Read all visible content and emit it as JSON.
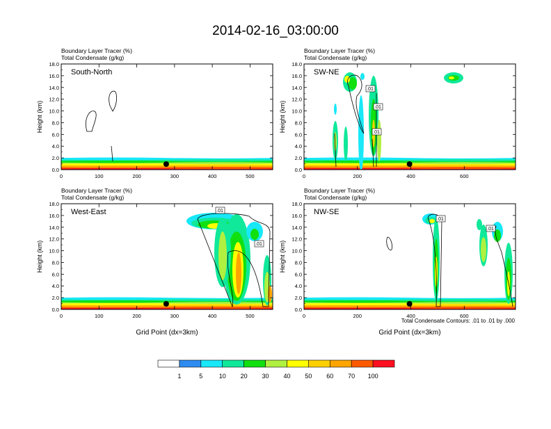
{
  "title": "2014-02-16_03:00:00",
  "colorbar": {
    "colors": [
      "#ffffff",
      "#2e8cf0",
      "#18e8f8",
      "#10e89a",
      "#10e010",
      "#b0f040",
      "#ffff00",
      "#ffd000",
      "#ffa500",
      "#ff5a00",
      "#ff1020"
    ],
    "labels": [
      "1",
      "5",
      "10",
      "20",
      "30",
      "40",
      "50",
      "60",
      "70",
      "100"
    ]
  },
  "footnote": "Total Condensate Contours: .01 to .01 by .000",
  "chart_data": [
    {
      "type": "heatmap",
      "panel": "South-North",
      "title_lines": [
        "Boundary Layer Tracer   (%)",
        "Total Condensate   (g/kg)"
      ],
      "ylabel": "Height (km)",
      "xlabel": "",
      "xlim": [
        0,
        560
      ],
      "ylim": [
        0,
        18
      ],
      "xticks": [
        "0",
        "100",
        "200",
        "300",
        "400",
        "500"
      ],
      "yticks": [
        "0.0",
        "2.0",
        "4.0",
        "6.0",
        "8.0",
        "10.0",
        "12.0",
        "14.0",
        "16.0",
        "18.0"
      ],
      "marker_x": 278,
      "contour_labels": []
    },
    {
      "type": "heatmap",
      "panel": "SW-NE",
      "title_lines": [
        "Boundary Layer Tracer   (%)",
        "Total Condensate   (g/kg)"
      ],
      "ylabel": "Height (km)",
      "xlabel": "",
      "xlim": [
        0,
        792
      ],
      "ylim": [
        0,
        18
      ],
      "xticks": [
        "0",
        "200",
        "400",
        "600"
      ],
      "yticks": [
        "0.0",
        "2.0",
        "4.0",
        "6.0",
        "8.0",
        "10.0",
        "12.0",
        "14.0",
        "16.0",
        "18.0"
      ],
      "marker_x": 395,
      "contour_labels": [
        ".01",
        ".01",
        ".01"
      ]
    },
    {
      "type": "heatmap",
      "panel": "West-East",
      "title_lines": [
        "Boundary Layer Tracer   (%)",
        "Total Condensate   (g/kg)"
      ],
      "ylabel": "Height (km)",
      "xlabel": "Grid Point (dx=3km)",
      "xlim": [
        0,
        560
      ],
      "ylim": [
        0,
        18
      ],
      "xticks": [
        "0",
        "100",
        "200",
        "300",
        "400",
        "500"
      ],
      "yticks": [
        "0.0",
        "2.0",
        "4.0",
        "6.0",
        "8.0",
        "10.0",
        "12.0",
        "14.0",
        "16.0",
        "18.0"
      ],
      "marker_x": 278,
      "contour_labels": [
        ".01",
        ".01"
      ]
    },
    {
      "type": "heatmap",
      "panel": "NW-SE",
      "title_lines": [
        "Boundary Layer Tracer   (%)",
        "Total Condensate   (g/kg)"
      ],
      "ylabel": "Height (km)",
      "xlabel": "Grid Point (dx=3km)",
      "xlim": [
        0,
        792
      ],
      "ylim": [
        0,
        18
      ],
      "xticks": [
        "0",
        "200",
        "400",
        "600"
      ],
      "yticks": [
        "0.0",
        "2.0",
        "4.0",
        "6.0",
        "8.0",
        "10.0",
        "12.0",
        "14.0",
        "16.0",
        "18.0"
      ],
      "marker_x": 395,
      "contour_labels": [
        ".01",
        ".01"
      ]
    }
  ]
}
